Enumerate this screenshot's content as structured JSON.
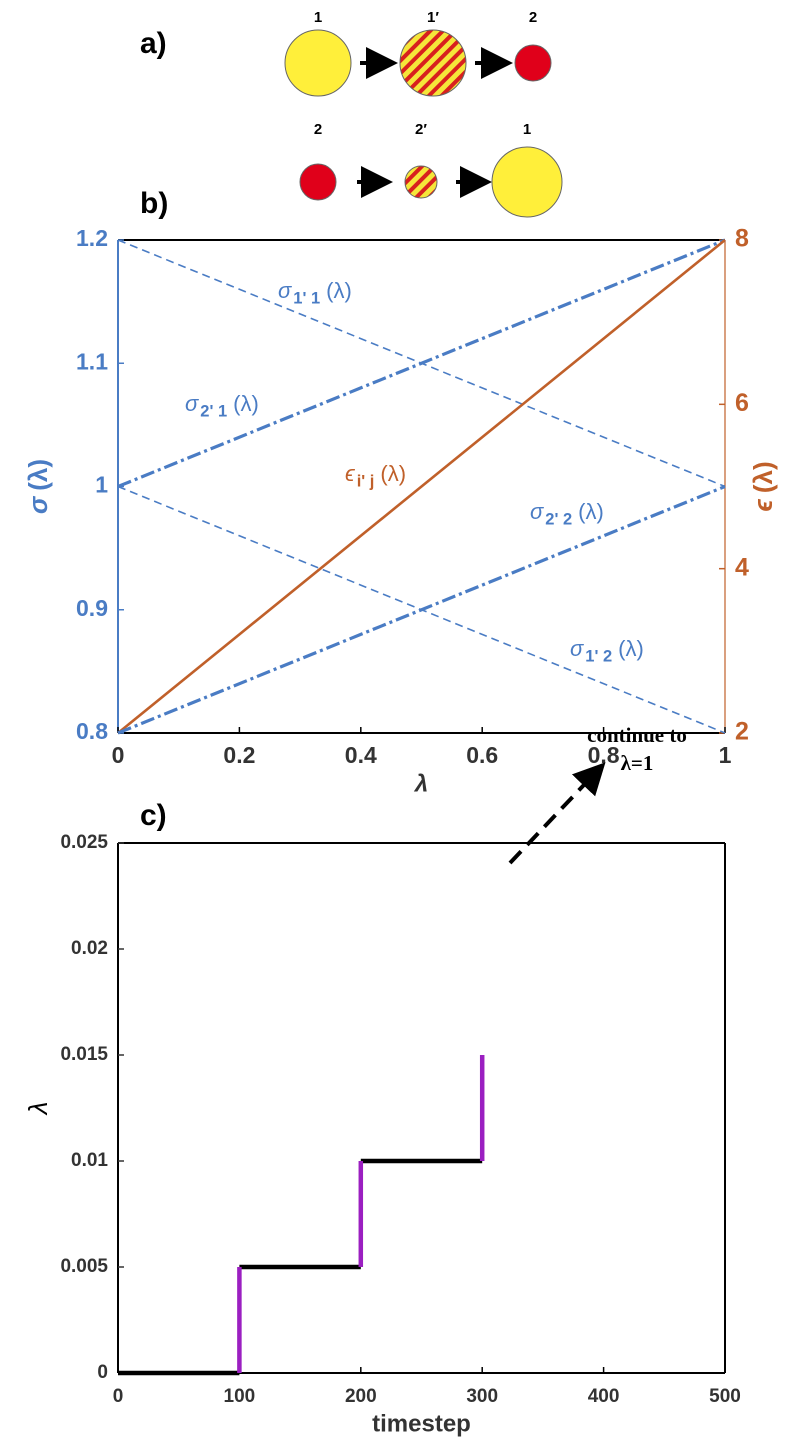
{
  "diagram": {
    "panel_label": "a)",
    "row1": [
      "1",
      "1′",
      "2"
    ],
    "row2": [
      "2",
      "2′",
      "1"
    ]
  },
  "chart_data": [
    {
      "type": "line",
      "panel_label": "b)",
      "x": [
        0,
        1
      ],
      "xlim": [
        0,
        1
      ],
      "xticks": [
        0,
        0.2,
        0.4,
        0.6,
        0.8,
        1
      ],
      "xlabel": "λ",
      "ylim": [
        0.8,
        1.2
      ],
      "yticks": [
        0.8,
        0.9,
        1,
        1.1,
        1.2
      ],
      "ylabel": {
        "symbol": "σ",
        "arg": "(λ)"
      },
      "ycolor": "#4a7cc4",
      "y2lim": [
        2,
        8
      ],
      "y2ticks": [
        2,
        4,
        6,
        8
      ],
      "y2label": {
        "symbol": "ϵ",
        "arg": "(λ)"
      },
      "y2color": "#c0602a",
      "series": [
        {
          "label": {
            "symbol": "σ",
            "subscript": "1' 1",
            "arg": "(λ)"
          },
          "color": "#4a7cc4",
          "style": "dashed",
          "values": [
            1.2,
            1.0
          ]
        },
        {
          "label": {
            "symbol": "σ",
            "subscript": "2' 1",
            "arg": "(λ)"
          },
          "color": "#4a7cc4",
          "style": "dashdot",
          "values": [
            1.0,
            1.2
          ]
        },
        {
          "label": {
            "symbol": "ϵ",
            "subscript": "i' j",
            "arg": "(λ)"
          },
          "color": "#c0602a",
          "style": "solid",
          "axis": "y2",
          "values": [
            2,
            8
          ]
        },
        {
          "label": {
            "symbol": "σ",
            "subscript": "2' 2",
            "arg": "(λ)"
          },
          "color": "#4a7cc4",
          "style": "dashdot",
          "values": [
            0.8,
            1.0
          ]
        },
        {
          "label": {
            "symbol": "σ",
            "subscript": "1' 2",
            "arg": "(λ)"
          },
          "color": "#4a7cc4",
          "style": "dashed",
          "values": [
            1.0,
            0.8
          ]
        }
      ]
    },
    {
      "type": "line",
      "panel_label": "c)",
      "xlim": [
        0,
        500
      ],
      "xticks": [
        0,
        100,
        200,
        300,
        400,
        500
      ],
      "xlabel": "timestep",
      "ylim": [
        0,
        0.025
      ],
      "yticks": [
        0,
        0.005,
        0.01,
        0.015,
        0.02,
        0.025
      ],
      "ylabel": "λ",
      "annotation": [
        "continue to",
        "λ=1"
      ],
      "series": [
        {
          "color": "#000000",
          "style": "solid",
          "x": [
            0,
            100,
            null,
            100,
            200,
            null,
            200,
            300
          ],
          "values": [
            0,
            0,
            null,
            0.005,
            0.005,
            null,
            0.01,
            0.01
          ]
        },
        {
          "color": "#9b1fc1",
          "style": "solid",
          "x": [
            100,
            100,
            null,
            200,
            200,
            null,
            300,
            300
          ],
          "values": [
            0,
            0.005,
            null,
            0.005,
            0.01,
            null,
            0.01,
            0.015
          ]
        }
      ]
    }
  ]
}
